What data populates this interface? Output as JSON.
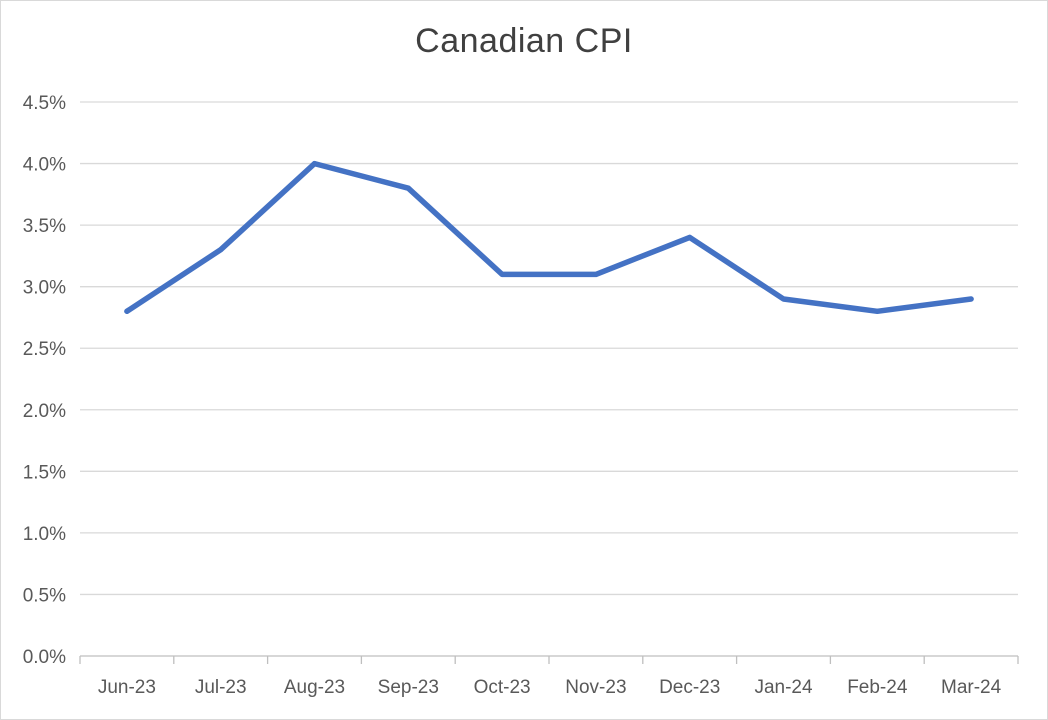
{
  "chart_data": {
    "type": "line",
    "title": "Canadian CPI",
    "xlabel": "",
    "ylabel": "",
    "categories": [
      "Jun-23",
      "Jul-23",
      "Aug-23",
      "Sep-23",
      "Oct-23",
      "Nov-23",
      "Dec-23",
      "Jan-24",
      "Feb-24",
      "Mar-24"
    ],
    "series": [
      {
        "values": [
          2.8,
          3.3,
          4.0,
          3.8,
          3.1,
          3.1,
          3.4,
          2.9,
          2.8,
          2.9
        ],
        "color": "#4472c4"
      }
    ],
    "ylim": [
      0,
      4.5
    ],
    "yticks": [
      0.0,
      0.5,
      1.0,
      1.5,
      2.0,
      2.5,
      3.0,
      3.5,
      4.0,
      4.5
    ],
    "ytick_labels": [
      "0.0%",
      "0.5%",
      "1.0%",
      "1.5%",
      "2.0%",
      "2.5%",
      "3.0%",
      "3.5%",
      "4.0%",
      "4.5%"
    ],
    "grid": true,
    "legend": "none"
  }
}
